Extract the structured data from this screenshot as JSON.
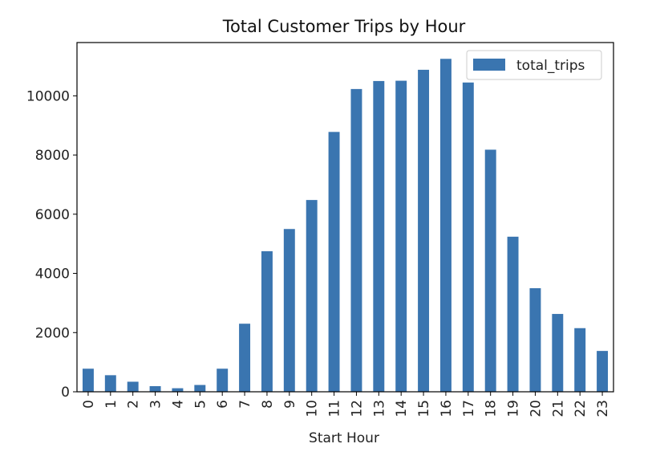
{
  "chart_data": {
    "type": "bar",
    "title": "Total Customer Trips by Hour",
    "xlabel": "Start Hour",
    "ylabel": "",
    "categories": [
      "0",
      "1",
      "2",
      "3",
      "4",
      "5",
      "6",
      "7",
      "8",
      "9",
      "10",
      "11",
      "12",
      "13",
      "14",
      "15",
      "16",
      "17",
      "18",
      "19",
      "20",
      "21",
      "22",
      "23"
    ],
    "series": [
      {
        "name": "total_trips",
        "color": "#3a75b0",
        "values": [
          780,
          560,
          340,
          190,
          120,
          230,
          780,
          2300,
          4750,
          5500,
          6480,
          8780,
          10230,
          10500,
          10510,
          10880,
          11250,
          10450,
          8180,
          5240,
          3500,
          2630,
          2150,
          1380
        ]
      }
    ],
    "ylim": [
      0,
      11800
    ],
    "yticks": [
      "0",
      "2000",
      "4000",
      "6000",
      "8000",
      "10000"
    ],
    "grid": false,
    "legend_position": "top-right"
  }
}
